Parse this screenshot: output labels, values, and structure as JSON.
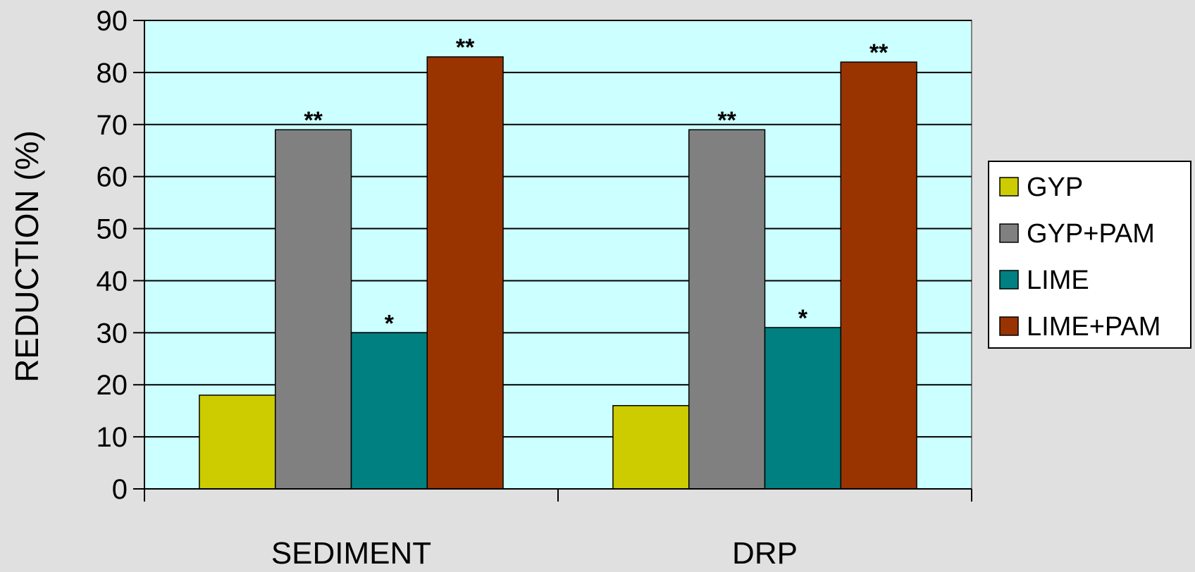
{
  "chart_data": {
    "type": "bar",
    "title": "",
    "xlabel": "",
    "ylabel": "REDUCTION (%)",
    "ylim": [
      0,
      90
    ],
    "yticks": [
      0,
      10,
      20,
      30,
      40,
      50,
      60,
      70,
      80,
      90
    ],
    "grid": true,
    "legend_position": "right",
    "categories": [
      "SEDIMENT",
      "DRP"
    ],
    "series": [
      {
        "name": "GYP",
        "color": "#cccc00",
        "values": [
          18,
          16
        ],
        "annotations": [
          "",
          ""
        ]
      },
      {
        "name": "GYP+PAM",
        "color": "#808080",
        "values": [
          69,
          69
        ],
        "annotations": [
          "**",
          "**"
        ]
      },
      {
        "name": "LIME",
        "color": "#008080",
        "values": [
          30,
          31
        ],
        "annotations": [
          "*",
          "*"
        ]
      },
      {
        "name": "LIME+PAM",
        "color": "#993300",
        "values": [
          83,
          82
        ],
        "annotations": [
          "**",
          "**"
        ]
      }
    ],
    "plot_background": "#ccffff",
    "page_background": "#e0e0e0"
  }
}
